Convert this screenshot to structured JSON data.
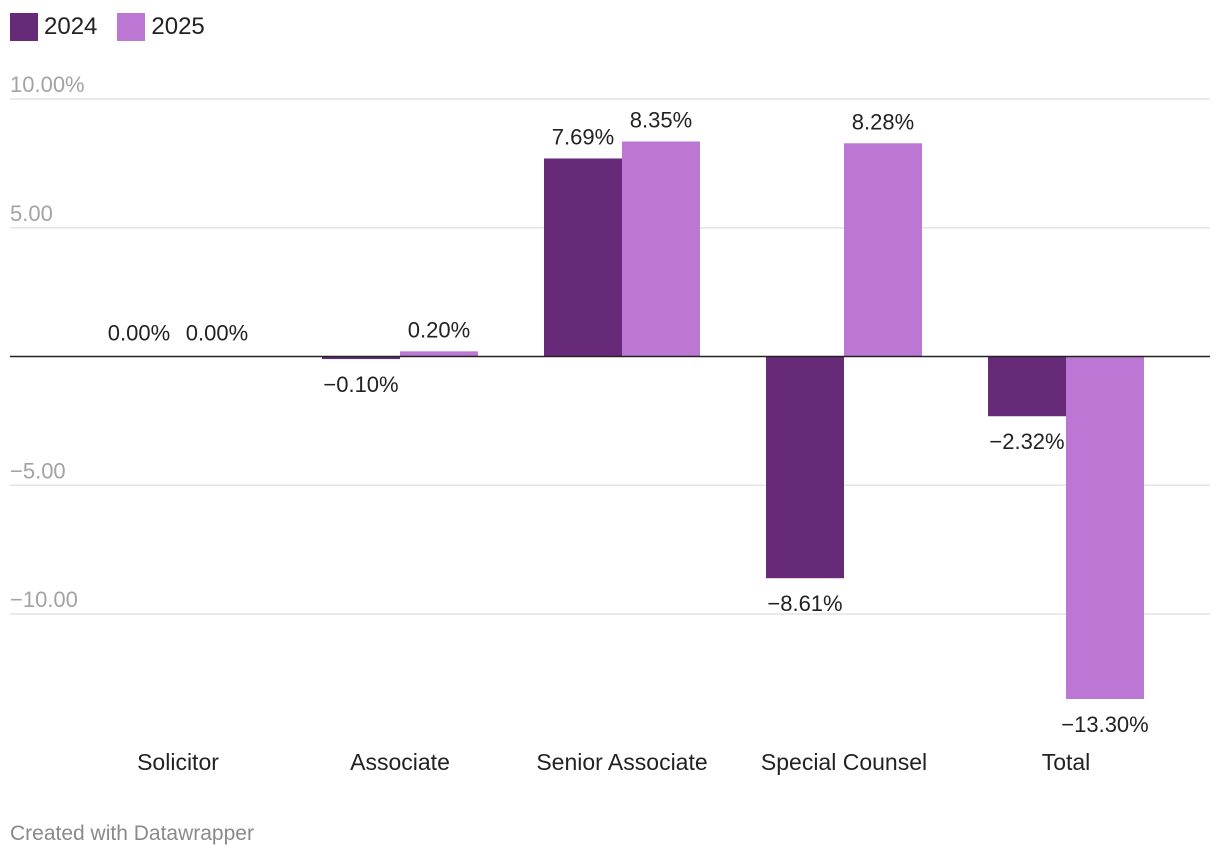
{
  "chart_data": {
    "type": "bar",
    "categories": [
      "Solicitor",
      "Associate",
      "Senior Associate",
      "Special Counsel",
      "Total"
    ],
    "series": [
      {
        "name": "2024",
        "color": "#662a79",
        "values": [
          0.0,
          -0.1,
          7.69,
          -8.61,
          -2.32
        ],
        "labels": [
          "0.00%",
          "−0.10%",
          "7.69%",
          "−8.61%",
          "−2.32%"
        ]
      },
      {
        "name": "2025",
        "color": "#bb77d3",
        "values": [
          0.0,
          0.2,
          8.35,
          8.28,
          -13.3
        ],
        "labels": [
          "0.00%",
          "0.20%",
          "8.35%",
          "8.28%",
          "−13.30%"
        ]
      }
    ],
    "yticks": [
      {
        "value": 10,
        "label": "10.00%"
      },
      {
        "value": 5,
        "label": "5.00"
      },
      {
        "value": -5,
        "label": "−5.00"
      },
      {
        "value": -10,
        "label": "−10.00"
      }
    ],
    "ylim": [
      -13.3,
      10
    ],
    "grid": true,
    "legend_position": "top-left"
  },
  "legend": [
    {
      "label": "2024",
      "color": "#662a79"
    },
    {
      "label": "2025",
      "color": "#bb77d3"
    }
  ],
  "footer": "Created with Datawrapper"
}
